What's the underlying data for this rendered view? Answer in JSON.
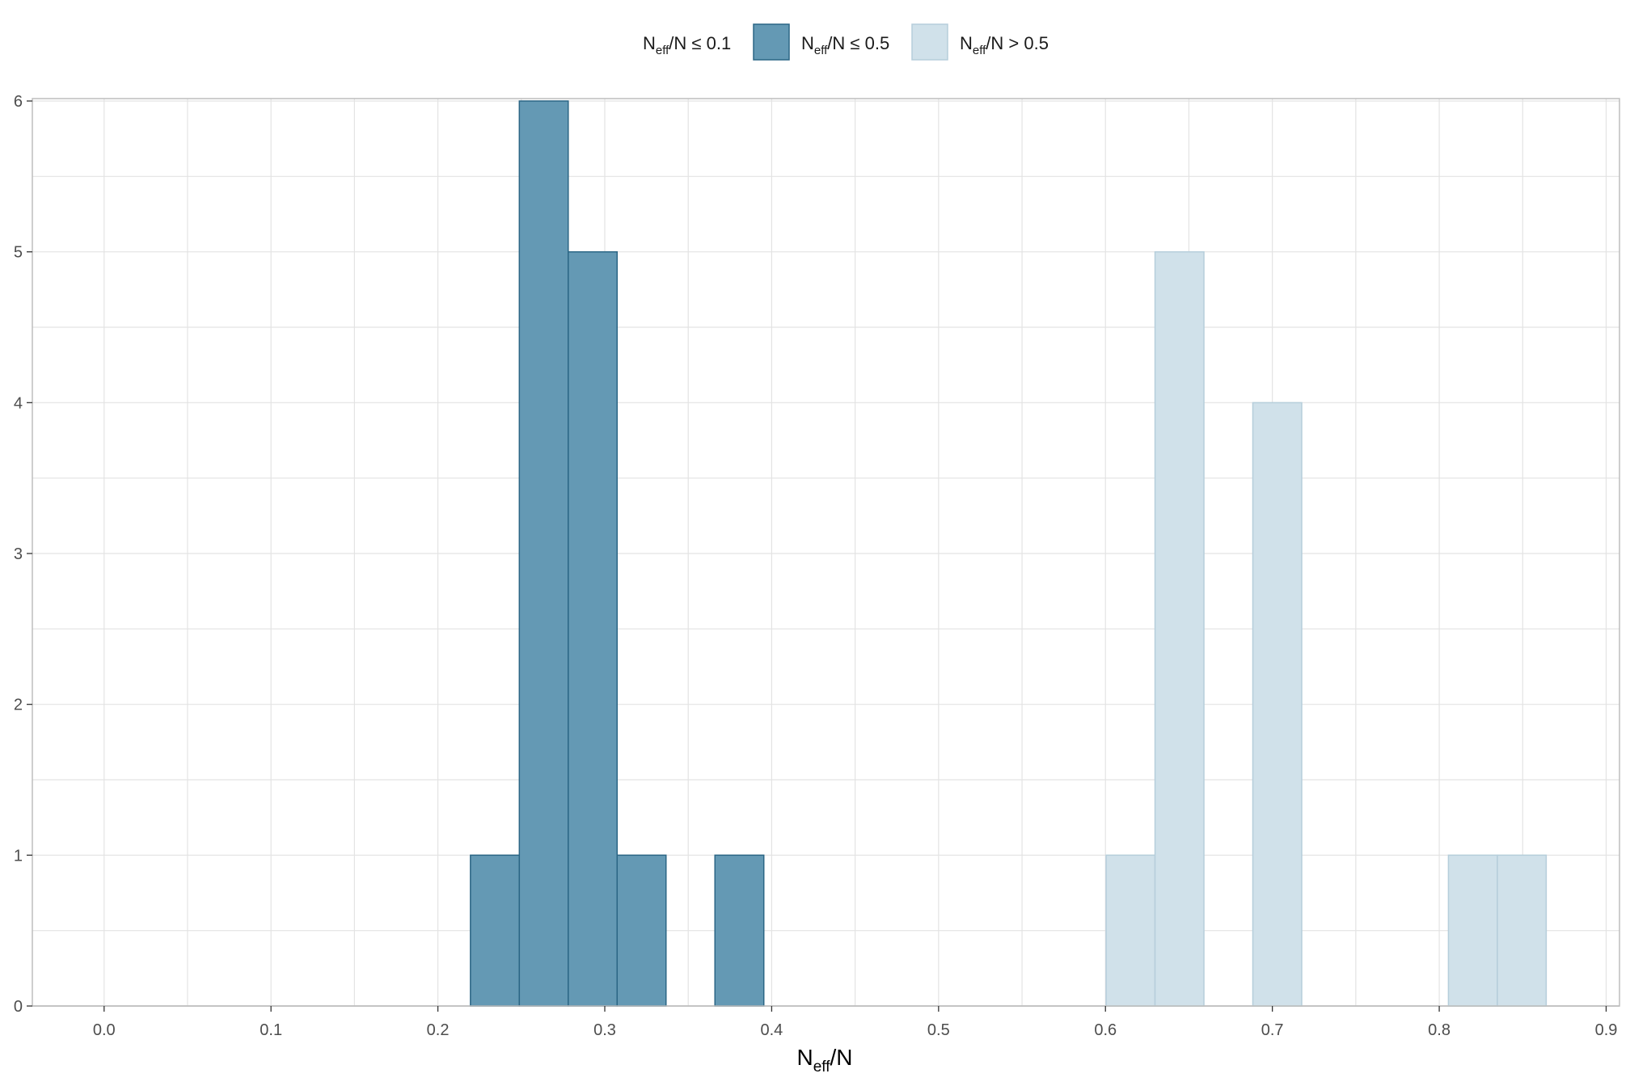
{
  "chart_data": {
    "type": "bar",
    "title": "",
    "xlabel": {
      "main": "N",
      "sub": "eff",
      "rest": "/N"
    },
    "ylabel": "",
    "xlim": [
      -0.043,
      0.908
    ],
    "ylim": [
      0,
      6
    ],
    "x_ticks": [
      "0.0",
      "0.1",
      "0.2",
      "0.3",
      "0.4",
      "0.5",
      "0.6",
      "0.7",
      "0.8",
      "0.9"
    ],
    "y_ticks": [
      "0",
      "1",
      "2",
      "3",
      "4",
      "5",
      "6"
    ],
    "bin_width": 0.0293,
    "grid": true,
    "legend_position": "top",
    "legend": [
      {
        "key": "le01",
        "main": "N",
        "sub": "eff",
        "rest": "/N ≤ 0.1",
        "swatch": false,
        "fill": "none",
        "stroke": "none"
      },
      {
        "key": "le05",
        "main": "N",
        "sub": "eff",
        "rest": "/N ≤ 0.5",
        "swatch": true,
        "fill": "#6499b4",
        "stroke": "#2b6685"
      },
      {
        "key": "gt05",
        "main": "N",
        "sub": "eff",
        "rest": "/N > 0.5",
        "swatch": true,
        "fill": "#d0e1ea",
        "stroke": "#b6cedb"
      }
    ],
    "series": [
      {
        "key": "le05",
        "fill": "#6499b4",
        "stroke": "#2b6685",
        "bins": [
          {
            "x0": 0.2195,
            "x1": 0.2488,
            "count": 1
          },
          {
            "x0": 0.2488,
            "x1": 0.2781,
            "count": 6
          },
          {
            "x0": 0.2781,
            "x1": 0.3074,
            "count": 5
          },
          {
            "x0": 0.3074,
            "x1": 0.3367,
            "count": 1
          },
          {
            "x0": 0.366,
            "x1": 0.3953,
            "count": 1
          }
        ]
      },
      {
        "key": "gt05",
        "fill": "#d0e1ea",
        "stroke": "#b6cedb",
        "bins": [
          {
            "x0": 0.6004,
            "x1": 0.6297,
            "count": 1
          },
          {
            "x0": 0.6297,
            "x1": 0.659,
            "count": 5
          },
          {
            "x0": 0.6883,
            "x1": 0.7176,
            "count": 4
          },
          {
            "x0": 0.8055,
            "x1": 0.8348,
            "count": 1
          },
          {
            "x0": 0.8348,
            "x1": 0.8641,
            "count": 1
          }
        ]
      }
    ]
  }
}
